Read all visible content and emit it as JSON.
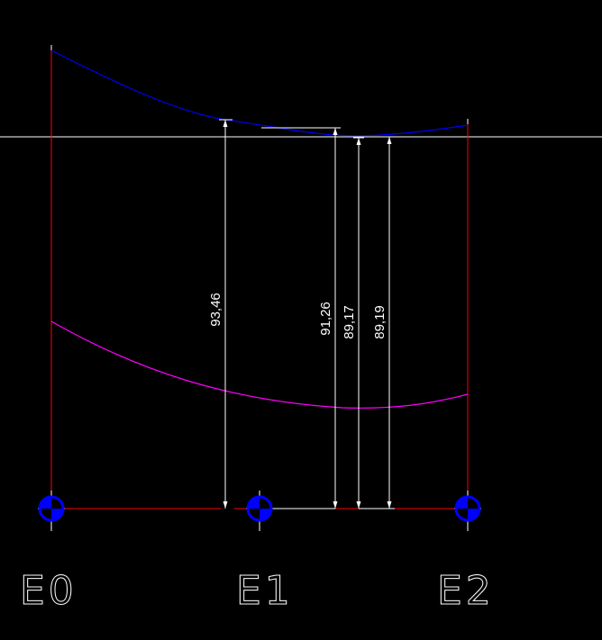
{
  "colors": {
    "background": "#000000",
    "reference_line": "#ffffff",
    "top_profile": "#0000ff",
    "lower_profile": "#ff00ff",
    "frame": "#ff0000",
    "dimension": "#ffffff",
    "marker_fill": "#0000ff",
    "marker_outline": "#ffffff"
  },
  "stations": [
    {
      "label": "E0"
    },
    {
      "label": "E1"
    },
    {
      "label": "E2"
    }
  ],
  "dimensions": [
    {
      "value": "93,46"
    },
    {
      "value": "91,26"
    },
    {
      "value": "89,17"
    },
    {
      "value": "89,19"
    }
  ]
}
